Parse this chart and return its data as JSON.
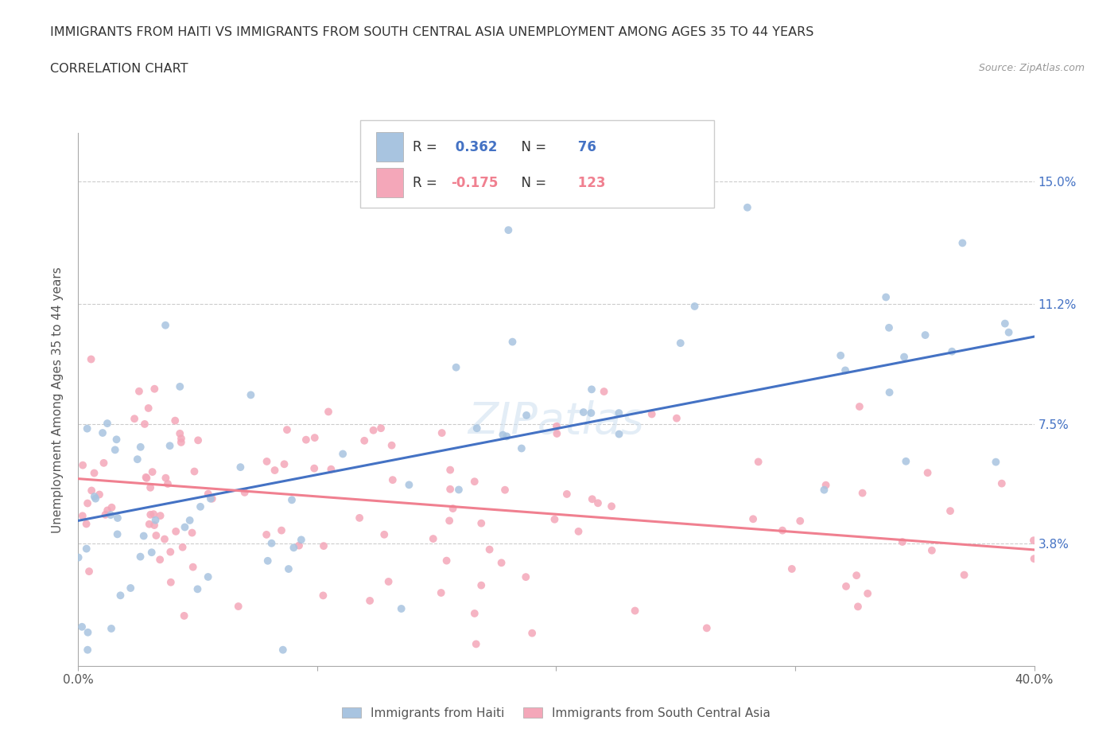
{
  "title_line1": "IMMIGRANTS FROM HAITI VS IMMIGRANTS FROM SOUTH CENTRAL ASIA UNEMPLOYMENT AMONG AGES 35 TO 44 YEARS",
  "title_line2": "CORRELATION CHART",
  "source": "Source: ZipAtlas.com",
  "ylabel": "Unemployment Among Ages 35 to 44 years",
  "xmin": 0.0,
  "xmax": 0.4,
  "ymin": 0.0,
  "ymax": 0.165,
  "ytick_positions": [
    0.038,
    0.075,
    0.112,
    0.15
  ],
  "ytick_labels": [
    "3.8%",
    "7.5%",
    "11.2%",
    "15.0%"
  ],
  "haiti_R": 0.362,
  "haiti_N": 76,
  "asia_R": -0.175,
  "asia_N": 123,
  "haiti_color": "#a8c4e0",
  "asia_color": "#f4a7b9",
  "haiti_line_color": "#4472c4",
  "asia_line_color": "#f08090",
  "legend_haiti_label": "Immigrants from Haiti",
  "legend_asia_label": "Immigrants from South Central Asia",
  "background_color": "#ffffff",
  "grid_color": "#cccccc",
  "haiti_line_start_y": 0.045,
  "haiti_line_end_y": 0.102,
  "asia_line_start_y": 0.058,
  "asia_line_end_y": 0.036
}
